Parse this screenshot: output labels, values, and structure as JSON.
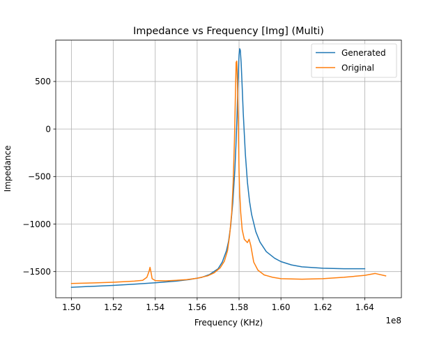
{
  "chart_data": {
    "type": "line",
    "title": "Impedance vs Frequency [Img] (Multi)",
    "xlabel": "Frequency (KHz)",
    "ylabel": "Impedance",
    "x_offset_label": "1e8",
    "xlim": [
      1.4925,
      1.6575
    ],
    "ylim": [
      -1775,
      935
    ],
    "x_ticks": [
      1.5,
      1.52,
      1.54,
      1.56,
      1.58,
      1.6,
      1.62,
      1.64
    ],
    "x_tick_labels": [
      "1.50",
      "1.52",
      "1.54",
      "1.56",
      "1.58",
      "1.60",
      "1.62",
      "1.64"
    ],
    "y_ticks": [
      -1500,
      -1000,
      -500,
      0,
      500
    ],
    "y_tick_labels": [
      "−1500",
      "−1000",
      "−500",
      "0",
      "500"
    ],
    "grid": true,
    "legend_position": "top-right",
    "series": [
      {
        "name": "Generated",
        "color": "#1f77b4",
        "points": [
          [
            1.5,
            -1665
          ],
          [
            1.51,
            -1655
          ],
          [
            1.52,
            -1645
          ],
          [
            1.53,
            -1632
          ],
          [
            1.54,
            -1618
          ],
          [
            1.55,
            -1600
          ],
          [
            1.556,
            -1585
          ],
          [
            1.562,
            -1562
          ],
          [
            1.566,
            -1530
          ],
          [
            1.57,
            -1470
          ],
          [
            1.572,
            -1400
          ],
          [
            1.574,
            -1280
          ],
          [
            1.575,
            -1180
          ],
          [
            1.576,
            -1020
          ],
          [
            1.577,
            -780
          ],
          [
            1.578,
            -430
          ],
          [
            1.5785,
            -180
          ],
          [
            1.579,
            120
          ],
          [
            1.5795,
            500
          ],
          [
            1.58,
            780
          ],
          [
            1.5803,
            845
          ],
          [
            1.5806,
            830
          ],
          [
            1.581,
            700
          ],
          [
            1.5815,
            440
          ],
          [
            1.582,
            170
          ],
          [
            1.583,
            -260
          ],
          [
            1.584,
            -560
          ],
          [
            1.585,
            -760
          ],
          [
            1.586,
            -900
          ],
          [
            1.588,
            -1080
          ],
          [
            1.59,
            -1190
          ],
          [
            1.593,
            -1290
          ],
          [
            1.597,
            -1360
          ],
          [
            1.6,
            -1395
          ],
          [
            1.605,
            -1430
          ],
          [
            1.61,
            -1450
          ],
          [
            1.62,
            -1465
          ],
          [
            1.63,
            -1470
          ],
          [
            1.64,
            -1470
          ]
        ]
      },
      {
        "name": "Original",
        "color": "#ff7f0e",
        "points": [
          [
            1.5,
            -1625
          ],
          [
            1.51,
            -1620
          ],
          [
            1.52,
            -1612
          ],
          [
            1.53,
            -1600
          ],
          [
            1.534,
            -1592
          ],
          [
            1.536,
            -1560
          ],
          [
            1.537,
            -1500
          ],
          [
            1.5375,
            -1455
          ],
          [
            1.538,
            -1510
          ],
          [
            1.5385,
            -1575
          ],
          [
            1.54,
            -1595
          ],
          [
            1.545,
            -1598
          ],
          [
            1.55,
            -1592
          ],
          [
            1.555,
            -1585
          ],
          [
            1.56,
            -1570
          ],
          [
            1.565,
            -1545
          ],
          [
            1.568,
            -1515
          ],
          [
            1.571,
            -1460
          ],
          [
            1.573,
            -1390
          ],
          [
            1.5745,
            -1280
          ],
          [
            1.5755,
            -1120
          ],
          [
            1.5765,
            -880
          ],
          [
            1.5772,
            -560
          ],
          [
            1.5778,
            -120
          ],
          [
            1.5782,
            300
          ],
          [
            1.5786,
            700
          ],
          [
            1.5789,
            715
          ],
          [
            1.5792,
            500
          ],
          [
            1.5796,
            100
          ],
          [
            1.58,
            -450
          ],
          [
            1.5803,
            -670
          ],
          [
            1.5808,
            -880
          ],
          [
            1.5815,
            -1060
          ],
          [
            1.5825,
            -1160
          ],
          [
            1.584,
            -1195
          ],
          [
            1.5848,
            -1160
          ],
          [
            1.5856,
            -1225
          ],
          [
            1.587,
            -1400
          ],
          [
            1.589,
            -1485
          ],
          [
            1.592,
            -1535
          ],
          [
            1.596,
            -1560
          ],
          [
            1.6,
            -1575
          ],
          [
            1.61,
            -1580
          ],
          [
            1.62,
            -1575
          ],
          [
            1.63,
            -1560
          ],
          [
            1.64,
            -1540
          ],
          [
            1.645,
            -1520
          ],
          [
            1.65,
            -1545
          ]
        ]
      }
    ]
  }
}
